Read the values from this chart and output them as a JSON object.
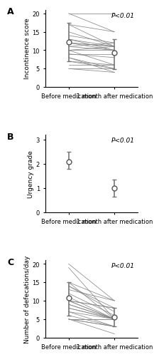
{
  "panel_A": {
    "label": "A",
    "ylabel": "Incontinence score",
    "ylim": [
      0,
      21
    ],
    "yticks": [
      0,
      5,
      10,
      15,
      20
    ],
    "mean_before": 12.2,
    "mean_after": 9.3,
    "err_before": [
      5.2,
      5.3
    ],
    "err_after": [
      4.5,
      3.7
    ],
    "lines_before": [
      20,
      20,
      17,
      17,
      15,
      14,
      13,
      13,
      12,
      12,
      12,
      11,
      11,
      10,
      10,
      10,
      9,
      9,
      8,
      8,
      7,
      7,
      6,
      5,
      5
    ],
    "lines_after": [
      20,
      15,
      15,
      11,
      11,
      12,
      11,
      10,
      10,
      11,
      11,
      12,
      10,
      10,
      6,
      11,
      9,
      8,
      4,
      5,
      5,
      6,
      6,
      5,
      4
    ],
    "pvalue": "P<0.01"
  },
  "panel_B": {
    "label": "B",
    "ylabel": "Urgency grade",
    "ylim": [
      0,
      3.2
    ],
    "yticks": [
      0,
      1,
      2,
      3
    ],
    "mean_before": 2.1,
    "mean_after": 1.0,
    "err_before": [
      0.3,
      0.4
    ],
    "err_after": [
      0.35,
      0.35
    ],
    "lines_before": [],
    "lines_after": [],
    "pvalue": "P<0.01"
  },
  "panel_C": {
    "label": "C",
    "ylabel": "Number of defecations/day",
    "ylim": [
      0,
      21
    ],
    "yticks": [
      0,
      5,
      10,
      15,
      20
    ],
    "mean_before": 10.8,
    "mean_after": 5.5,
    "err_before": [
      4.8,
      4.2
    ],
    "err_after": [
      2.5,
      2.5
    ],
    "lines_before": [
      20,
      19,
      15,
      15,
      14,
      14,
      13,
      12,
      11,
      10,
      10,
      10,
      10,
      9,
      9,
      8,
      8,
      7,
      7,
      6,
      5,
      5,
      5,
      5,
      5
    ],
    "lines_after": [
      10,
      5,
      10,
      5,
      8,
      7,
      10,
      6,
      5,
      8,
      8,
      5,
      5,
      5,
      5,
      5,
      5,
      5,
      3,
      3,
      5,
      3,
      3,
      1,
      5
    ],
    "pvalue": "P<0.01"
  },
  "xlabel_before": "Before medication",
  "xlabel_after": "1 month after medication",
  "x_positions": [
    0,
    1
  ],
  "line_color": "#888888",
  "mean_marker": "o",
  "mean_marker_size": 5,
  "mean_marker_color": "white",
  "mean_marker_edgecolor": "#555555",
  "err_color": "#777777",
  "err_linewidth": 1.2,
  "line_linewidth": 0.55,
  "pvalue_fontsize": 6.5,
  "label_fontsize": 9,
  "tick_fontsize": 6,
  "ylabel_fontsize": 6.5
}
